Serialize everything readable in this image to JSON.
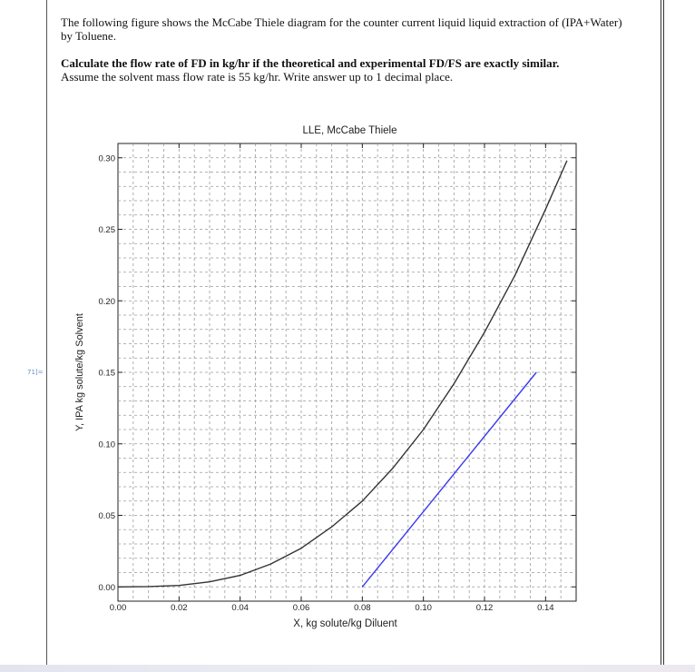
{
  "question": {
    "intro": "The following figure shows the McCabe Thiele diagram for the counter current liquid liquid extraction of (IPA+Water) by Toluene.",
    "task": "Calculate the flow rate of FD in kg/hr if the theoretical and experimental FD/FS are exactly similar.",
    "assumption": "Assume the solvent mass flow rate is 55 kg/hr. Write answer up to 1 decimal place."
  },
  "side_tag": "71]=",
  "chart_data": {
    "type": "line",
    "title": "LLE, McCabe Thiele",
    "xlabel": "X, kg solute/kg Diluent",
    "ylabel": "Y, IPA kg solute/kg Solvent",
    "xlim": [
      0,
      0.15
    ],
    "ylim": [
      -0.01,
      0.31
    ],
    "xticks": [
      0.0,
      0.02,
      0.04,
      0.06,
      0.08,
      0.1,
      0.12,
      0.14
    ],
    "xtick_labels": [
      "0.00",
      "0.02",
      "0.04",
      "0.06",
      "0.08",
      "0.10",
      "0.12",
      "0.14"
    ],
    "yticks": [
      0.0,
      0.05,
      0.1,
      0.15,
      0.2,
      0.25,
      0.3
    ],
    "ytick_labels": [
      "0.00",
      "0.05",
      "0.10",
      "0.15",
      "0.20",
      "0.25",
      "0.30"
    ],
    "grid": true,
    "series": [
      {
        "color": "#333333",
        "x": [
          0.0,
          0.01,
          0.02,
          0.03,
          0.04,
          0.05,
          0.06,
          0.07,
          0.08,
          0.09,
          0.1,
          0.11,
          0.12,
          0.13,
          0.14,
          0.147
        ],
        "y": [
          0.0,
          0.0002,
          0.001,
          0.0035,
          0.008,
          0.016,
          0.027,
          0.042,
          0.06,
          0.083,
          0.11,
          0.142,
          0.178,
          0.218,
          0.264,
          0.298
        ]
      },
      {
        "color": "#3a3af0",
        "x": [
          0.08,
          0.137
        ],
        "y": [
          0.0,
          0.15
        ]
      }
    ]
  }
}
